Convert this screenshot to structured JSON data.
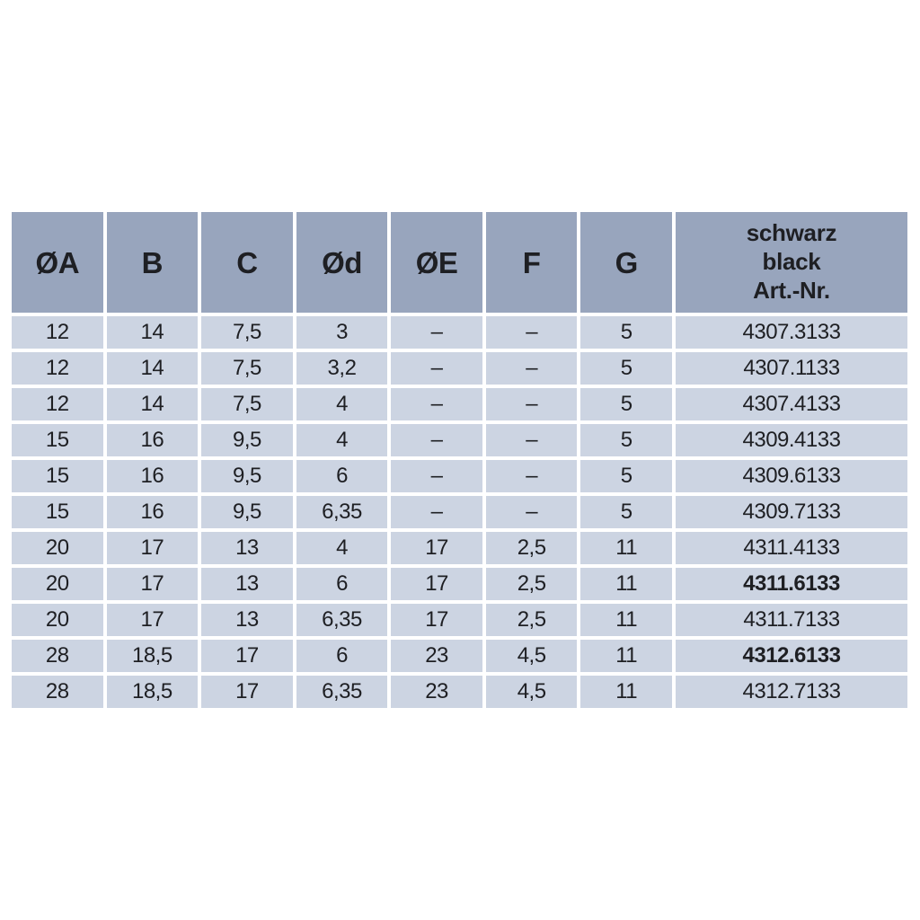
{
  "page": {
    "background": "#ffffff"
  },
  "table": {
    "column_headers": [
      "ØA",
      "B",
      "C",
      "Ød",
      "ØE",
      "F",
      "G"
    ],
    "art_column_header_lines": [
      "schwarz",
      "black",
      "Art.-Nr."
    ],
    "rows": [
      {
        "values": [
          "12",
          "14",
          "7,5",
          "3",
          "–",
          "–",
          "5"
        ],
        "art_nr": "4307.3133",
        "art_bold": false
      },
      {
        "values": [
          "12",
          "14",
          "7,5",
          "3,2",
          "–",
          "–",
          "5"
        ],
        "art_nr": "4307.1133",
        "art_bold": false
      },
      {
        "values": [
          "12",
          "14",
          "7,5",
          "4",
          "–",
          "–",
          "5"
        ],
        "art_nr": "4307.4133",
        "art_bold": false
      },
      {
        "values": [
          "15",
          "16",
          "9,5",
          "4",
          "–",
          "–",
          "5"
        ],
        "art_nr": "4309.4133",
        "art_bold": false
      },
      {
        "values": [
          "15",
          "16",
          "9,5",
          "6",
          "–",
          "–",
          "5"
        ],
        "art_nr": "4309.6133",
        "art_bold": false
      },
      {
        "values": [
          "15",
          "16",
          "9,5",
          "6,35",
          "–",
          "–",
          "5"
        ],
        "art_nr": "4309.7133",
        "art_bold": false
      },
      {
        "values": [
          "20",
          "17",
          "13",
          "4",
          "17",
          "2,5",
          "11"
        ],
        "art_nr": "4311.4133",
        "art_bold": false
      },
      {
        "values": [
          "20",
          "17",
          "13",
          "6",
          "17",
          "2,5",
          "11"
        ],
        "art_nr": "4311.6133",
        "art_bold": true
      },
      {
        "values": [
          "20",
          "17",
          "13",
          "6,35",
          "17",
          "2,5",
          "11"
        ],
        "art_nr": "4311.7133",
        "art_bold": false
      },
      {
        "values": [
          "28",
          "18,5",
          "17",
          "6",
          "23",
          "4,5",
          "11"
        ],
        "art_nr": "4312.6133",
        "art_bold": true
      },
      {
        "values": [
          "28",
          "18,5",
          "17",
          "6,35",
          "23",
          "4,5",
          "11"
        ],
        "art_nr": "4312.7133",
        "art_bold": false
      }
    ],
    "colors": {
      "header_bg": "#98a5bd",
      "row_bg": "#ccd4e2",
      "text": "#1e1f23",
      "gap": "#ffffff"
    }
  }
}
